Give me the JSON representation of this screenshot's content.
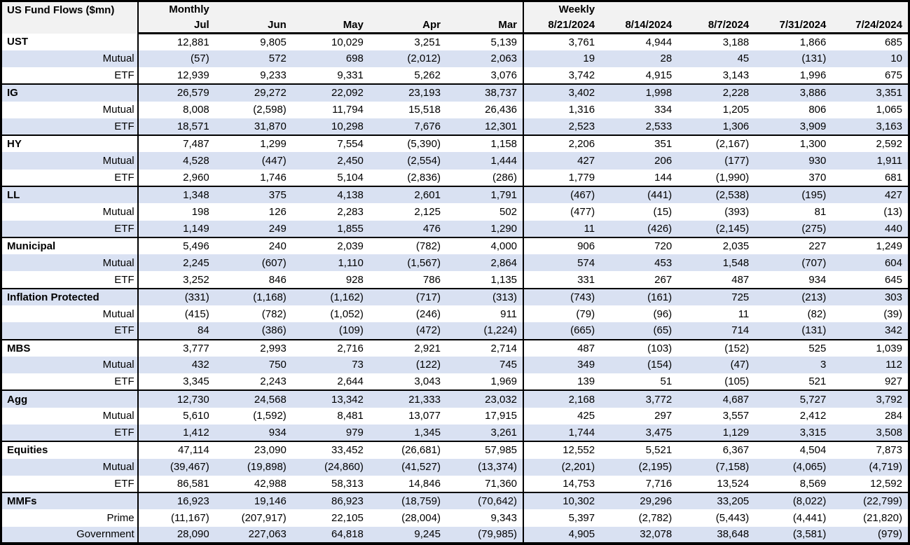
{
  "table": {
    "title": "US Fund Flows ($mn)",
    "sections": {
      "monthly": "Monthly",
      "weekly": "Weekly"
    },
    "monthly_columns": [
      "Jul",
      "Jun",
      "May",
      "Apr",
      "Mar"
    ],
    "weekly_columns": [
      "8/21/2024",
      "8/14/2024",
      "8/7/2024",
      "7/31/2024",
      "7/24/2024"
    ],
    "colors": {
      "stripe": "#d9e1f2",
      "header_bg": "#f2f2f2",
      "border": "#000000"
    },
    "rows": [
      {
        "label": "UST",
        "category": true,
        "monthly": [
          "12,881",
          "9,805",
          "10,029",
          "3,251",
          "5,139"
        ],
        "weekly": [
          "3,761",
          "4,944",
          "3,188",
          "1,866",
          "685"
        ]
      },
      {
        "label": "Mutual",
        "category": false,
        "monthly": [
          "(57)",
          "572",
          "698",
          "(2,012)",
          "2,063"
        ],
        "weekly": [
          "19",
          "28",
          "45",
          "(131)",
          "10"
        ]
      },
      {
        "label": "ETF",
        "category": false,
        "monthly": [
          "12,939",
          "9,233",
          "9,331",
          "5,262",
          "3,076"
        ],
        "weekly": [
          "3,742",
          "4,915",
          "3,143",
          "1,996",
          "675"
        ]
      },
      {
        "label": "IG",
        "category": true,
        "monthly": [
          "26,579",
          "29,272",
          "22,092",
          "23,193",
          "38,737"
        ],
        "weekly": [
          "3,402",
          "1,998",
          "2,228",
          "3,886",
          "3,351"
        ]
      },
      {
        "label": "Mutual",
        "category": false,
        "monthly": [
          "8,008",
          "(2,598)",
          "11,794",
          "15,518",
          "26,436"
        ],
        "weekly": [
          "1,316",
          "334",
          "1,205",
          "806",
          "1,065"
        ]
      },
      {
        "label": "ETF",
        "category": false,
        "monthly": [
          "18,571",
          "31,870",
          "10,298",
          "7,676",
          "12,301"
        ],
        "weekly": [
          "2,523",
          "2,533",
          "1,306",
          "3,909",
          "3,163"
        ]
      },
      {
        "label": "HY",
        "category": true,
        "monthly": [
          "7,487",
          "1,299",
          "7,554",
          "(5,390)",
          "1,158"
        ],
        "weekly": [
          "2,206",
          "351",
          "(2,167)",
          "1,300",
          "2,592"
        ]
      },
      {
        "label": "Mutual",
        "category": false,
        "monthly": [
          "4,528",
          "(447)",
          "2,450",
          "(2,554)",
          "1,444"
        ],
        "weekly": [
          "427",
          "206",
          "(177)",
          "930",
          "1,911"
        ]
      },
      {
        "label": "ETF",
        "category": false,
        "monthly": [
          "2,960",
          "1,746",
          "5,104",
          "(2,836)",
          "(286)"
        ],
        "weekly": [
          "1,779",
          "144",
          "(1,990)",
          "370",
          "681"
        ]
      },
      {
        "label": "LL",
        "category": true,
        "monthly": [
          "1,348",
          "375",
          "4,138",
          "2,601",
          "1,791"
        ],
        "weekly": [
          "(467)",
          "(441)",
          "(2,538)",
          "(195)",
          "427"
        ]
      },
      {
        "label": "Mutual",
        "category": false,
        "monthly": [
          "198",
          "126",
          "2,283",
          "2,125",
          "502"
        ],
        "weekly": [
          "(477)",
          "(15)",
          "(393)",
          "81",
          "(13)"
        ]
      },
      {
        "label": "ETF",
        "category": false,
        "monthly": [
          "1,149",
          "249",
          "1,855",
          "476",
          "1,290"
        ],
        "weekly": [
          "11",
          "(426)",
          "(2,145)",
          "(275)",
          "440"
        ]
      },
      {
        "label": "Municipal",
        "category": true,
        "monthly": [
          "5,496",
          "240",
          "2,039",
          "(782)",
          "4,000"
        ],
        "weekly": [
          "906",
          "720",
          "2,035",
          "227",
          "1,249"
        ]
      },
      {
        "label": "Mutual",
        "category": false,
        "monthly": [
          "2,245",
          "(607)",
          "1,110",
          "(1,567)",
          "2,864"
        ],
        "weekly": [
          "574",
          "453",
          "1,548",
          "(707)",
          "604"
        ]
      },
      {
        "label": "ETF",
        "category": false,
        "monthly": [
          "3,252",
          "846",
          "928",
          "786",
          "1,135"
        ],
        "weekly": [
          "331",
          "267",
          "487",
          "934",
          "645"
        ]
      },
      {
        "label": "Inflation Protected",
        "category": true,
        "monthly": [
          "(331)",
          "(1,168)",
          "(1,162)",
          "(717)",
          "(313)"
        ],
        "weekly": [
          "(743)",
          "(161)",
          "725",
          "(213)",
          "303"
        ]
      },
      {
        "label": "Mutual",
        "category": false,
        "monthly": [
          "(415)",
          "(782)",
          "(1,052)",
          "(246)",
          "911"
        ],
        "weekly": [
          "(79)",
          "(96)",
          "11",
          "(82)",
          "(39)"
        ]
      },
      {
        "label": "ETF",
        "category": false,
        "monthly": [
          "84",
          "(386)",
          "(109)",
          "(472)",
          "(1,224)"
        ],
        "weekly": [
          "(665)",
          "(65)",
          "714",
          "(131)",
          "342"
        ]
      },
      {
        "label": "MBS",
        "category": true,
        "monthly": [
          "3,777",
          "2,993",
          "2,716",
          "2,921",
          "2,714"
        ],
        "weekly": [
          "487",
          "(103)",
          "(152)",
          "525",
          "1,039"
        ]
      },
      {
        "label": "Mutual",
        "category": false,
        "monthly": [
          "432",
          "750",
          "73",
          "(122)",
          "745"
        ],
        "weekly": [
          "349",
          "(154)",
          "(47)",
          "3",
          "112"
        ]
      },
      {
        "label": "ETF",
        "category": false,
        "monthly": [
          "3,345",
          "2,243",
          "2,644",
          "3,043",
          "1,969"
        ],
        "weekly": [
          "139",
          "51",
          "(105)",
          "521",
          "927"
        ]
      },
      {
        "label": "Agg",
        "category": true,
        "monthly": [
          "12,730",
          "24,568",
          "13,342",
          "21,333",
          "23,032"
        ],
        "weekly": [
          "2,168",
          "3,772",
          "4,687",
          "5,727",
          "3,792"
        ]
      },
      {
        "label": "Mutual",
        "category": false,
        "monthly": [
          "5,610",
          "(1,592)",
          "8,481",
          "13,077",
          "17,915"
        ],
        "weekly": [
          "425",
          "297",
          "3,557",
          "2,412",
          "284"
        ]
      },
      {
        "label": "ETF",
        "category": false,
        "monthly": [
          "1,412",
          "934",
          "979",
          "1,345",
          "3,261"
        ],
        "weekly": [
          "1,744",
          "3,475",
          "1,129",
          "3,315",
          "3,508"
        ]
      },
      {
        "label": "Equities",
        "category": true,
        "monthly": [
          "47,114",
          "23,090",
          "33,452",
          "(26,681)",
          "57,985"
        ],
        "weekly": [
          "12,552",
          "5,521",
          "6,367",
          "4,504",
          "7,873"
        ]
      },
      {
        "label": "Mutual",
        "category": false,
        "monthly": [
          "(39,467)",
          "(19,898)",
          "(24,860)",
          "(41,527)",
          "(13,374)"
        ],
        "weekly": [
          "(2,201)",
          "(2,195)",
          "(7,158)",
          "(4,065)",
          "(4,719)"
        ]
      },
      {
        "label": "ETF",
        "category": false,
        "monthly": [
          "86,581",
          "42,988",
          "58,313",
          "14,846",
          "71,360"
        ],
        "weekly": [
          "14,753",
          "7,716",
          "13,524",
          "8,569",
          "12,592"
        ]
      },
      {
        "label": "MMFs",
        "category": true,
        "monthly": [
          "16,923",
          "19,146",
          "86,923",
          "(18,759)",
          "(70,642)"
        ],
        "weekly": [
          "10,302",
          "29,296",
          "33,205",
          "(8,022)",
          "(22,799)"
        ]
      },
      {
        "label": "Prime",
        "category": false,
        "monthly": [
          "(11,167)",
          "(207,917)",
          "22,105",
          "(28,004)",
          "9,343"
        ],
        "weekly": [
          "5,397",
          "(2,782)",
          "(5,443)",
          "(4,441)",
          "(21,820)"
        ]
      },
      {
        "label": "Government",
        "category": false,
        "monthly": [
          "28,090",
          "227,063",
          "64,818",
          "9,245",
          "(79,985)"
        ],
        "weekly": [
          "4,905",
          "32,078",
          "38,648",
          "(3,581)",
          "(979)"
        ]
      }
    ]
  }
}
